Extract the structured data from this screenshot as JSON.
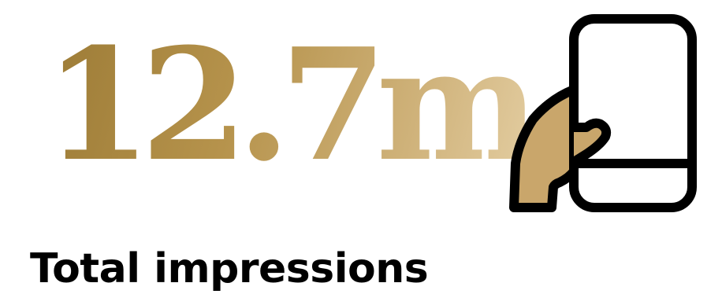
{
  "stat": {
    "value": "12.7m",
    "label": "Total impressions",
    "icon": "hand-holding-phone-icon"
  },
  "colors": {
    "gold_dark": "#9c7b36",
    "gold_light": "#e3cda1",
    "hand_fill": "#c9a66b",
    "outline": "#000000",
    "background": "#ffffff"
  }
}
